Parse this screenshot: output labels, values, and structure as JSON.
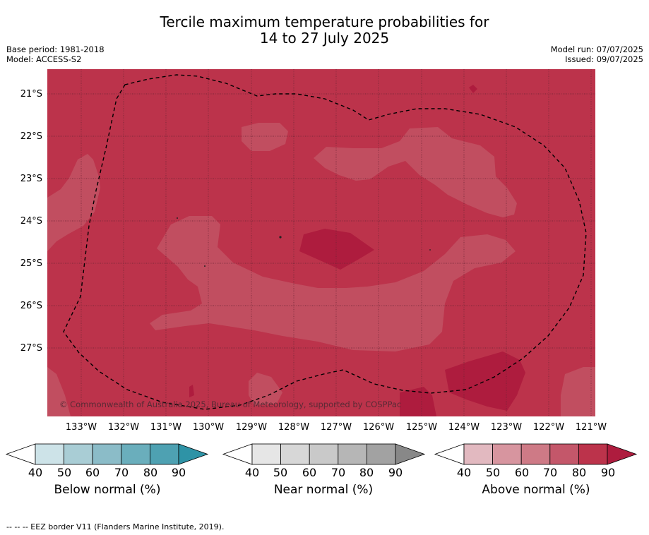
{
  "title_line1": "Tercile maximum temperature probabilities for",
  "title_line2": "14 to 27 July 2025",
  "meta": {
    "base_period": "Base period: 1981-2018",
    "model": "Model: ACCESS-S2",
    "model_run": "Model run: 07/07/2025",
    "issued": "Issued: 09/07/2025"
  },
  "map": {
    "lat_labels": [
      "21°S",
      "22°S",
      "23°S",
      "24°S",
      "25°S",
      "26°S",
      "27°S"
    ],
    "lon_labels": [
      "133°W",
      "132°W",
      "131°W",
      "130°W",
      "129°W",
      "128°W",
      "127°W",
      "126°W",
      "125°W",
      "124°W",
      "123°W",
      "122°W",
      "121°W"
    ],
    "copyright": "© Commonwealth of Australia 2025, Bureau of Meteorology, supported by COSPPac",
    "colors": {
      "above_80_90": "#bc334b",
      "above_70_80": "#c14e60",
      "above_90_plus": "#ae1c3e",
      "grid": "#6a2433",
      "eez_border": "#000000"
    }
  },
  "colorbars": [
    {
      "title": "Below normal (%)",
      "ticks": [
        "40",
        "50",
        "60",
        "70",
        "80",
        "90"
      ],
      "colors": [
        "#ffffff",
        "#cde3e8",
        "#a9cdd5",
        "#8bbcc8",
        "#6aaebc",
        "#4ea1b2",
        "#2e93a6"
      ]
    },
    {
      "title": "Near normal (%)",
      "ticks": [
        "40",
        "50",
        "60",
        "70",
        "80",
        "90"
      ],
      "colors": [
        "#ffffff",
        "#e6e6e6",
        "#d7d7d7",
        "#c9c9c9",
        "#b6b6b6",
        "#a2a2a2",
        "#888888"
      ]
    },
    {
      "title": "Above normal (%)",
      "ticks": [
        "40",
        "50",
        "60",
        "70",
        "80",
        "90"
      ],
      "colors": [
        "#ffffff",
        "#e2b9c0",
        "#d7959f",
        "#ce7a86",
        "#c4576a",
        "#bc334b",
        "#ae1c3e"
      ]
    }
  ],
  "footer": "-- -- -- EEZ border V11 (Flanders Marine Institute, 2019)."
}
